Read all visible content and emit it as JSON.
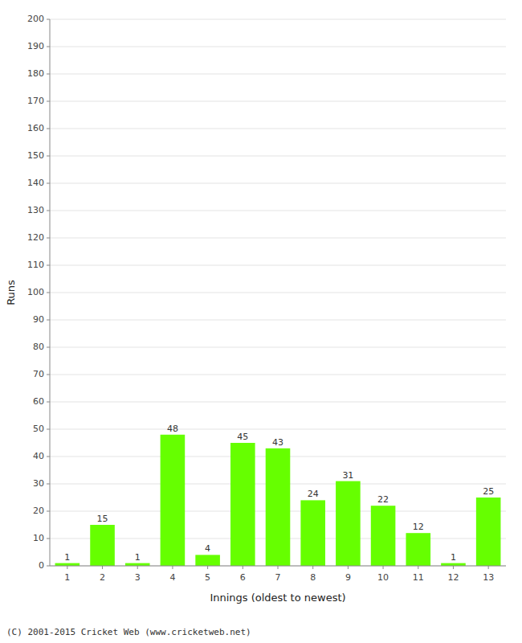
{
  "chart_data": {
    "type": "bar",
    "categories": [
      "1",
      "2",
      "3",
      "4",
      "5",
      "6",
      "7",
      "8",
      "9",
      "10",
      "11",
      "12",
      "13"
    ],
    "values": [
      1,
      15,
      1,
      48,
      4,
      45,
      43,
      24,
      31,
      22,
      12,
      1,
      25
    ],
    "color": "#66ff00",
    "xlabel": "Innings (oldest to newest)",
    "ylabel": "Runs",
    "ylim": [
      0,
      200
    ],
    "yticks": [
      0,
      10,
      20,
      30,
      40,
      50,
      60,
      70,
      80,
      90,
      100,
      110,
      120,
      130,
      140,
      150,
      160,
      170,
      180,
      190,
      200
    ],
    "grid": true,
    "data_labels": true,
    "annotations": [
      "(C) 2001-2015 Cricket Web (www.cricketweb.net)"
    ]
  }
}
